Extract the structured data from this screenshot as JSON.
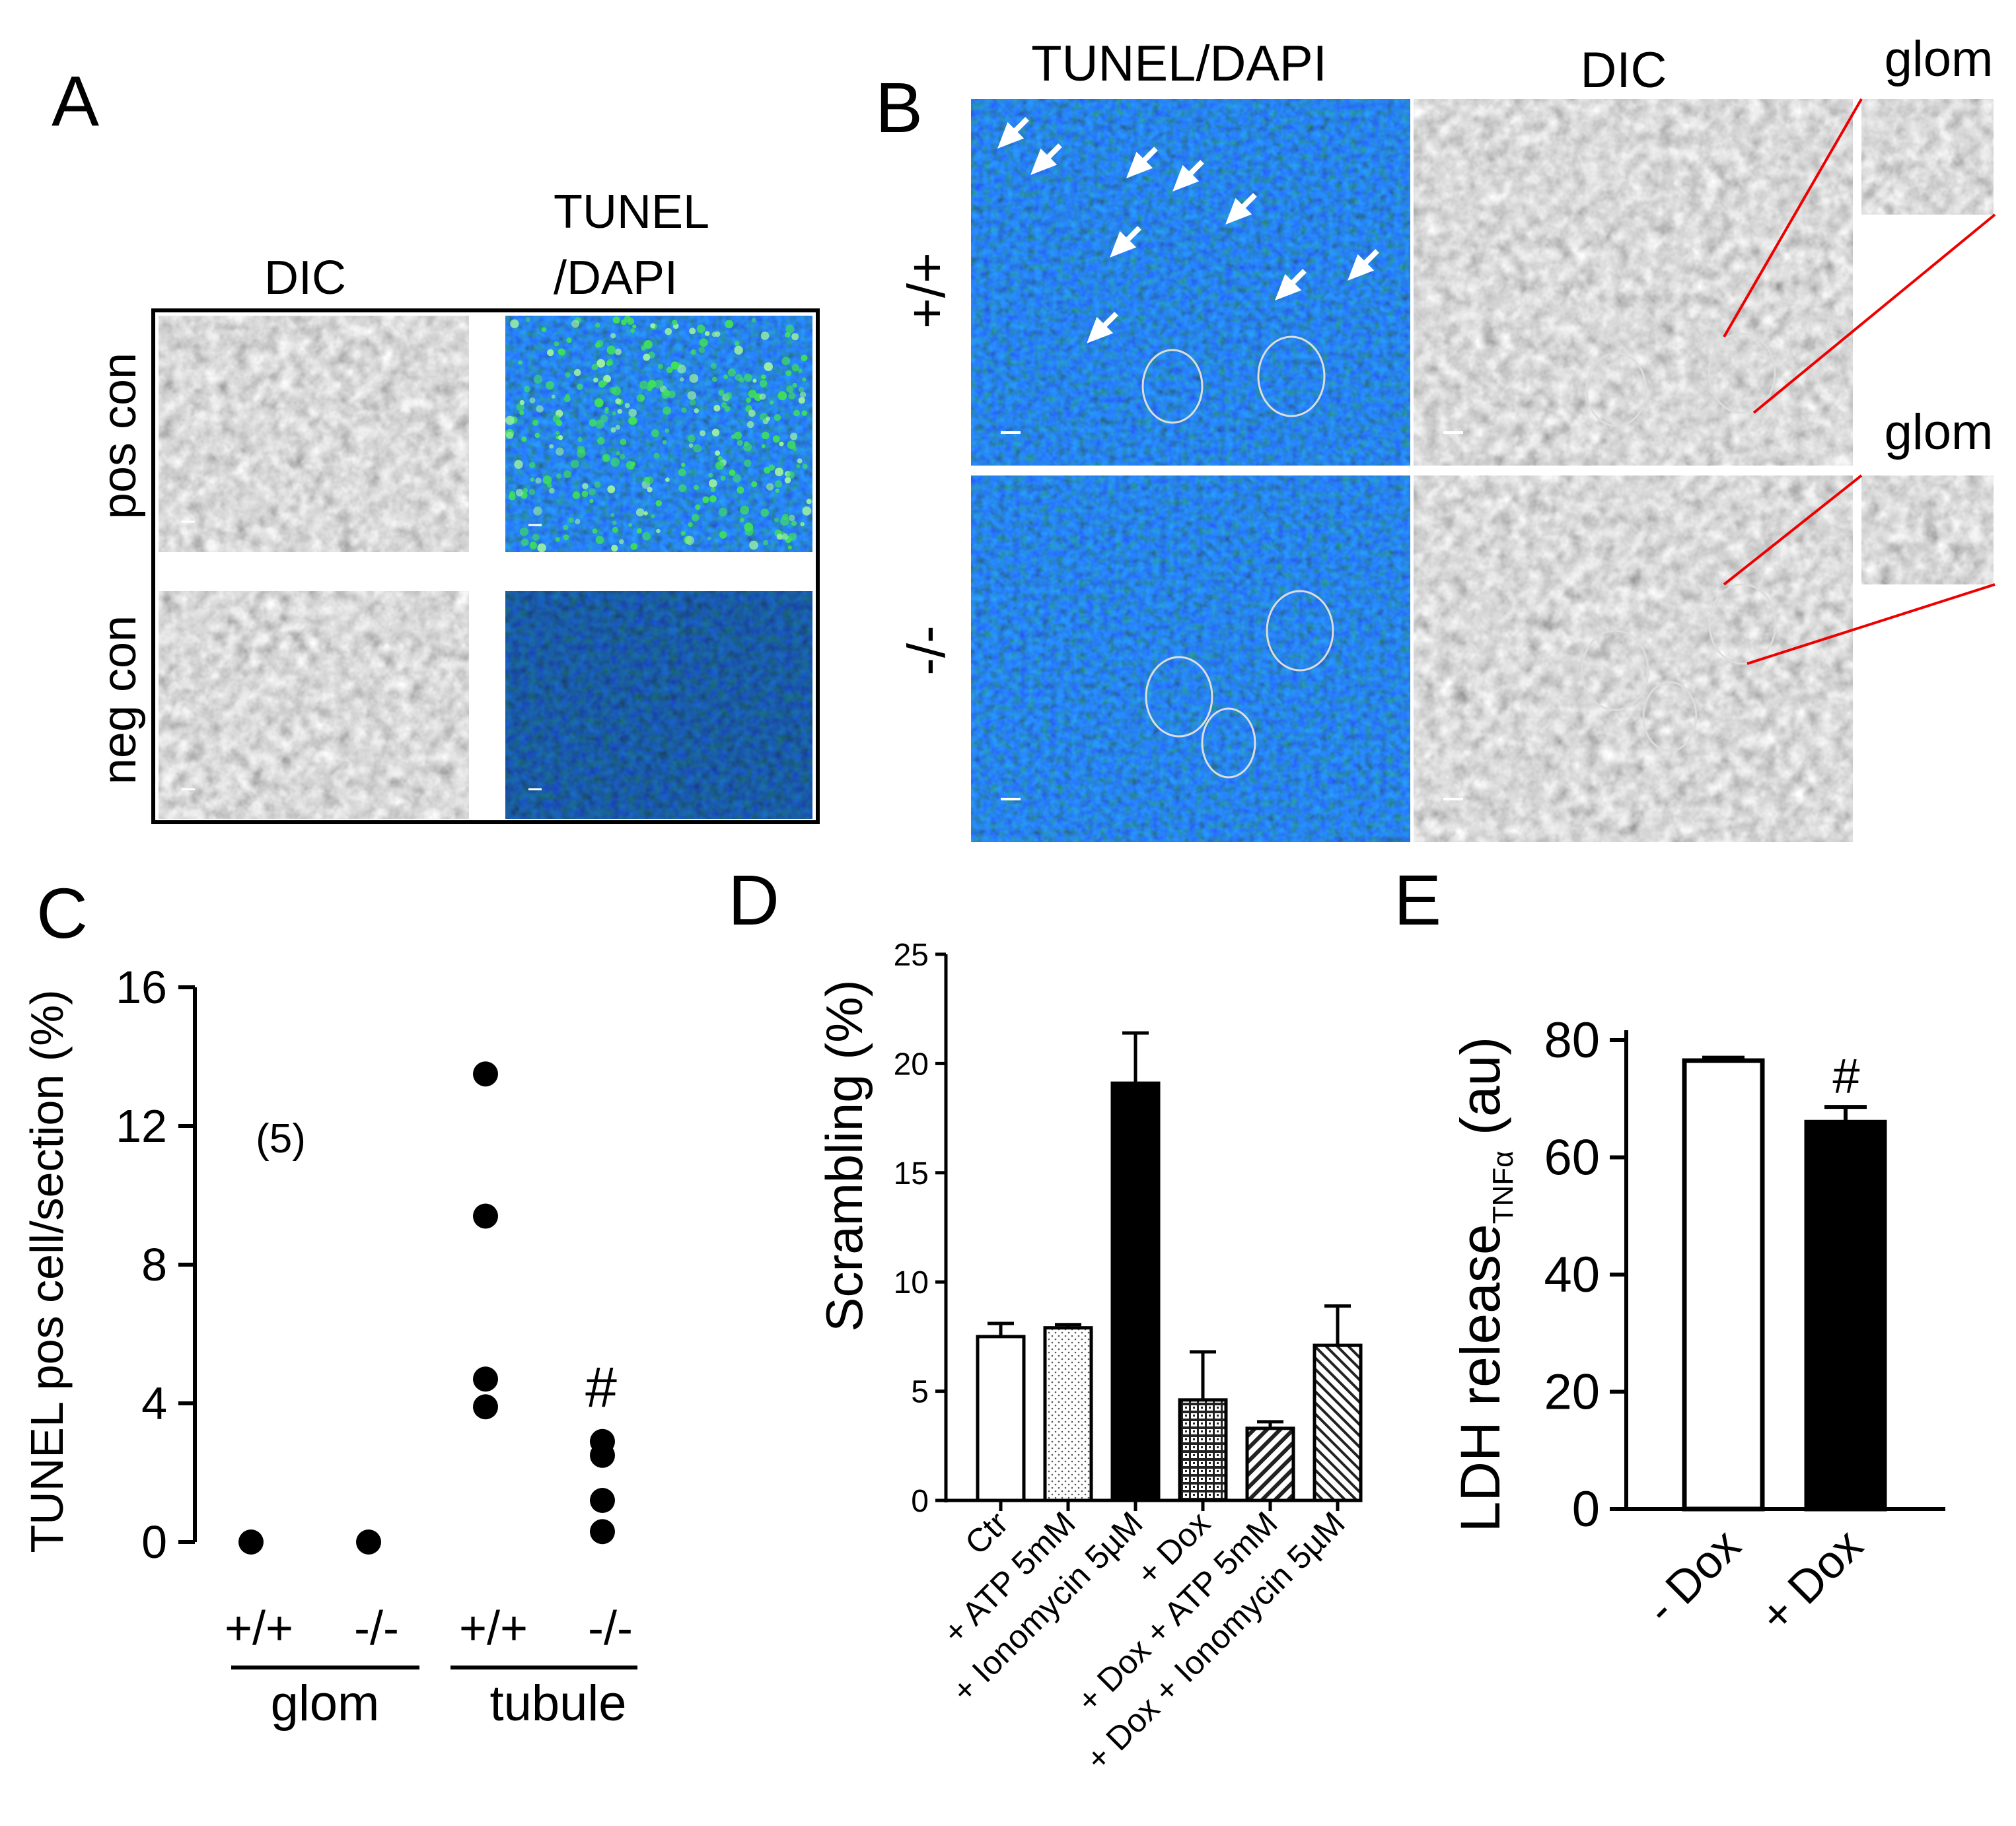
{
  "panels": {
    "A": {
      "letter": "A",
      "col_labels": [
        "DIC",
        "TUNEL",
        "/DAPI"
      ],
      "row_labels": [
        "pos con",
        "neg con"
      ]
    },
    "B": {
      "letter": "B",
      "col_labels": [
        "TUNEL/DAPI",
        "DIC"
      ],
      "row_labels": [
        "+/+",
        "-/-"
      ],
      "inset_labels": [
        "glom",
        "glom"
      ]
    },
    "C": {
      "letter": "C",
      "annotation_n": "(5)",
      "significance": "#",
      "group_labels": [
        "glom",
        "tubule"
      ]
    },
    "D": {
      "letter": "D"
    },
    "E": {
      "letter": "E",
      "significance": "#",
      "ylabel_sub": "TNFα"
    }
  },
  "chart_data": [
    {
      "id": "C",
      "type": "scatter",
      "ylabel": "TUNEL pos cell/section (%)",
      "ylim": [
        0,
        16
      ],
      "yticks": [
        0,
        4,
        8,
        12,
        16
      ],
      "categories": [
        "+/+",
        "-/-",
        "+/+",
        "-/-"
      ],
      "groups": [
        "glom",
        "glom",
        "tubule",
        "tubule"
      ],
      "points": [
        {
          "x": 0,
          "y": 0
        },
        {
          "x": 1,
          "y": 0
        },
        {
          "x": 2,
          "y": 13.5
        },
        {
          "x": 2,
          "y": 9.4
        },
        {
          "x": 2,
          "y": 4.7
        },
        {
          "x": 2,
          "y": 3.9
        },
        {
          "x": 3,
          "y": 2.9
        },
        {
          "x": 3,
          "y": 2.5
        },
        {
          "x": 3,
          "y": 1.2
        },
        {
          "x": 3,
          "y": 0.3
        }
      ]
    },
    {
      "id": "D",
      "type": "bar",
      "ylabel": "Scrambling (%)",
      "ylim": [
        0,
        25
      ],
      "yticks": [
        0,
        5,
        10,
        15,
        20,
        25
      ],
      "categories": [
        "Ctr",
        "+ ATP 5mM",
        "+ Ionomycin 5µM",
        "+ Dox",
        "+ Dox + ATP 5mM",
        "+ Dox + Ionomycin 5µM"
      ],
      "values": [
        7.5,
        7.9,
        19.1,
        4.6,
        3.3,
        7.1
      ],
      "errors": [
        0.6,
        0.15,
        2.3,
        2.2,
        0.3,
        1.8
      ],
      "fills": [
        "white",
        "dots",
        "black",
        "crosshatch",
        "diag",
        "diag-fine"
      ]
    },
    {
      "id": "E",
      "type": "bar",
      "ylabel": "LDH release",
      "ylim": [
        0,
        80
      ],
      "yticks": [
        0,
        20,
        40,
        60,
        80
      ],
      "categories": [
        "- Dox",
        "+ Dox"
      ],
      "values": [
        76.5,
        66
      ],
      "errors": [
        0.5,
        2.6
      ],
      "fills": [
        "white",
        "black"
      ]
    }
  ]
}
